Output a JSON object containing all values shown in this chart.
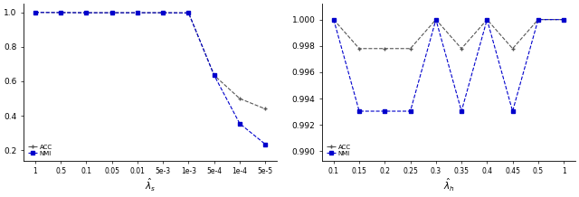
{
  "left": {
    "xlabel": "$\\hat{\\lambda}_s$",
    "xtick_labels": [
      "1",
      "0.5",
      "0.1",
      "0.05",
      "0.01",
      "5e-3",
      "1e-3",
      "5e-4",
      "1e-4",
      "5e-5"
    ],
    "ytick_vals": [
      0.2,
      0.4,
      0.6,
      0.8,
      1.0
    ],
    "ytick_labels": [
      "0.2",
      "0.4",
      "0.6",
      "0.8",
      "1.0"
    ],
    "ylim": [
      0.14,
      1.05
    ],
    "line1": {
      "label": "ACC",
      "color": "#555555",
      "linestyle": "--",
      "marker": "+",
      "markersize": 3,
      "y": [
        1.0,
        0.999,
        0.998,
        0.998,
        0.998,
        0.998,
        0.997,
        0.635,
        0.5,
        0.44
      ]
    },
    "line2": {
      "label": "NMI",
      "color": "#0000cc",
      "linestyle": "--",
      "marker": "s",
      "markersize": 3,
      "y": [
        1.0,
        0.999,
        0.998,
        0.998,
        0.998,
        0.998,
        0.997,
        0.635,
        0.355,
        0.235
      ]
    }
  },
  "right": {
    "xlabel": "$\\hat{\\lambda}_h$",
    "xtick_labels": [
      "0.1",
      "0.15",
      "0.2",
      "0.25",
      "0.3",
      "0.35",
      "0.4",
      "0.45",
      "0.5",
      "1"
    ],
    "ytick_vals": [
      0.99,
      0.992,
      0.994,
      0.996,
      0.998,
      1.0
    ],
    "ytick_labels": [
      "0.990",
      "0.992",
      "0.994",
      "0.996",
      "0.998",
      "1.000"
    ],
    "ylim": [
      0.9893,
      1.0012
    ],
    "line1": {
      "label": "ACC",
      "color": "#555555",
      "linestyle": "--",
      "marker": "+",
      "markersize": 3,
      "y": [
        1.0,
        0.9978,
        0.9978,
        0.9978,
        1.0,
        0.9978,
        1.0,
        0.9978,
        1.0,
        1.0
      ]
    },
    "line2": {
      "label": "NMI",
      "color": "#0000cc",
      "linestyle": "--",
      "marker": "s",
      "markersize": 3,
      "y": [
        1.0,
        0.99305,
        0.99305,
        0.99305,
        1.0,
        0.99305,
        1.0,
        0.99305,
        1.0,
        1.0
      ]
    }
  }
}
